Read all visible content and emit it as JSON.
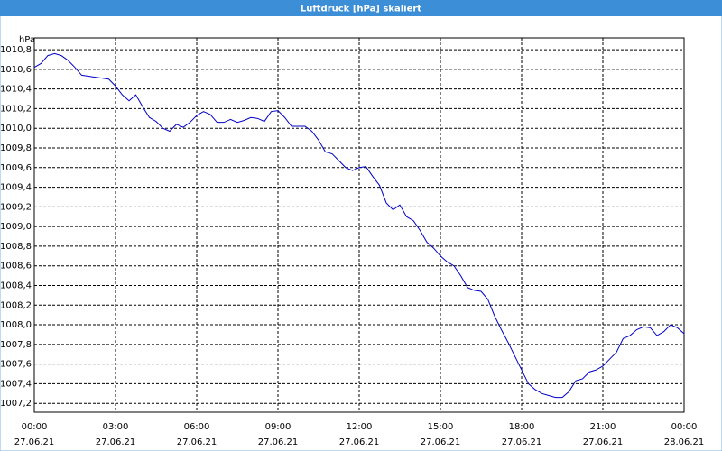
{
  "chart_data": {
    "type": "line",
    "title": "Luftdruck [hPa] skaliert",
    "y_unit": "hPa",
    "x": [
      0,
      0.25,
      0.5,
      0.75,
      1,
      1.25,
      1.5,
      1.75,
      2,
      2.25,
      2.5,
      2.75,
      3,
      3.25,
      3.5,
      3.75,
      4,
      4.25,
      4.5,
      4.75,
      5,
      5.25,
      5.5,
      5.75,
      6,
      6.25,
      6.5,
      6.75,
      7,
      7.25,
      7.5,
      7.75,
      8,
      8.25,
      8.5,
      8.75,
      9,
      9.25,
      9.5,
      9.75,
      10,
      10.25,
      10.5,
      10.75,
      11,
      11.25,
      11.5,
      11.75,
      12,
      12.25,
      12.5,
      12.75,
      13,
      13.25,
      13.5,
      13.75,
      14,
      14.25,
      14.5,
      14.75,
      15,
      15.25,
      15.5,
      15.75,
      16,
      16.25,
      16.5,
      16.75,
      17,
      17.25,
      17.5,
      17.75,
      18,
      18.25,
      18.5,
      18.75,
      19,
      19.25,
      19.5,
      19.75,
      20,
      20.25,
      20.5,
      20.75,
      21,
      21.25,
      21.5,
      21.75,
      22,
      22.25,
      22.5,
      22.75,
      23,
      23.25,
      23.5,
      23.75,
      24
    ],
    "series": [
      {
        "name": "Luftdruck",
        "color": "#0000c8",
        "values": [
          1010.62,
          1010.66,
          1010.74,
          1010.76,
          1010.74,
          1010.69,
          1010.62,
          1010.54,
          1010.53,
          1010.52,
          1010.51,
          1010.5,
          1010.43,
          1010.34,
          1010.28,
          1010.34,
          1010.22,
          1010.11,
          1010.07,
          1010.0,
          1009.97,
          1010.04,
          1010.01,
          1010.06,
          1010.13,
          1010.17,
          1010.14,
          1010.06,
          1010.06,
          1010.09,
          1010.06,
          1010.08,
          1010.11,
          1010.1,
          1010.07,
          1010.17,
          1010.18,
          1010.11,
          1010.02,
          1010.02,
          1010.02,
          1009.97,
          1009.88,
          1009.76,
          1009.74,
          1009.67,
          1009.6,
          1009.57,
          1009.6,
          1009.61,
          1009.51,
          1009.42,
          1009.24,
          1009.17,
          1009.22,
          1009.1,
          1009.06,
          1008.96,
          1008.84,
          1008.78,
          1008.7,
          1008.64,
          1008.6,
          1008.5,
          1008.38,
          1008.35,
          1008.34,
          1008.26,
          1008.09,
          1007.95,
          1007.82,
          1007.68,
          1007.54,
          1007.4,
          1007.34,
          1007.3,
          1007.28,
          1007.26,
          1007.26,
          1007.32,
          1007.43,
          1007.45,
          1007.52,
          1007.54,
          1007.58,
          1007.65,
          1007.72,
          1007.86,
          1007.89,
          1007.95,
          1007.98,
          1007.97,
          1007.89,
          1007.93,
          1008.0,
          1007.97,
          1007.91
        ]
      }
    ],
    "xlim": [
      0,
      24
    ],
    "xticks": [
      {
        "value": 0,
        "label": "00:00",
        "date": "27.06.21"
      },
      {
        "value": 3,
        "label": "03:00",
        "date": "27.06.21"
      },
      {
        "value": 6,
        "label": "06:00",
        "date": "27.06.21"
      },
      {
        "value": 9,
        "label": "09:00",
        "date": "27.06.21"
      },
      {
        "value": 12,
        "label": "12:00",
        "date": "27.06.21"
      },
      {
        "value": 15,
        "label": "15:00",
        "date": "27.06.21"
      },
      {
        "value": 18,
        "label": "18:00",
        "date": "27.06.21"
      },
      {
        "value": 21,
        "label": "21:00",
        "date": "27.06.21"
      },
      {
        "value": 24,
        "label": "00:00",
        "date": "28.06.21"
      }
    ],
    "ylim": [
      1007.11,
      1010.92
    ],
    "yticks": [
      {
        "value": 1007.2,
        "label": "1007,2"
      },
      {
        "value": 1007.4,
        "label": "1007,4"
      },
      {
        "value": 1007.6,
        "label": "1007,6"
      },
      {
        "value": 1007.8,
        "label": "1007,8"
      },
      {
        "value": 1008.0,
        "label": "1008,0"
      },
      {
        "value": 1008.2,
        "label": "1008,2"
      },
      {
        "value": 1008.4,
        "label": "1008,4"
      },
      {
        "value": 1008.6,
        "label": "1008,6"
      },
      {
        "value": 1008.8,
        "label": "1008,8"
      },
      {
        "value": 1009.0,
        "label": "1009,0"
      },
      {
        "value": 1009.2,
        "label": "1009,2"
      },
      {
        "value": 1009.4,
        "label": "1009,4"
      },
      {
        "value": 1009.6,
        "label": "1009,6"
      },
      {
        "value": 1009.8,
        "label": "1009,8"
      },
      {
        "value": 1010.0,
        "label": "1010,0"
      },
      {
        "value": 1010.2,
        "label": "1010,2"
      },
      {
        "value": 1010.4,
        "label": "1010,4"
      },
      {
        "value": 1010.6,
        "label": "1010,6"
      },
      {
        "value": 1010.8,
        "label": "1010,8"
      }
    ],
    "grid": true
  }
}
